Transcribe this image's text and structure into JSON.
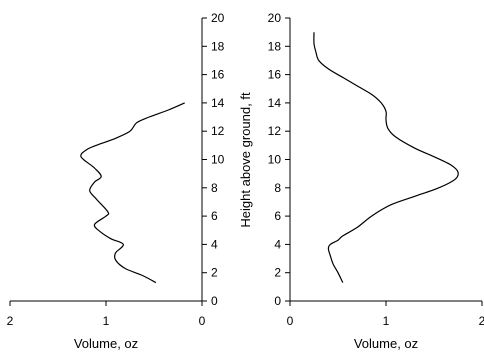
{
  "chart_data": [
    {
      "type": "line",
      "orientation": "horizontal-x-vertical-y",
      "xlabel": "Volume, oz",
      "ylabel": "",
      "xlim": [
        2,
        0
      ],
      "ylim": [
        0,
        20
      ],
      "x_reversed": true,
      "x_ticks": [
        2,
        1,
        0
      ],
      "y_ticks": [
        0,
        2,
        4,
        6,
        8,
        10,
        12,
        14,
        16,
        18,
        20
      ],
      "y_axis_side": "right",
      "grid": false,
      "series": [
        {
          "x": [
            0.48,
            0.62,
            0.8,
            0.9,
            0.9,
            0.82,
            0.95,
            1.06,
            1.12,
            1.0,
            0.98,
            1.1,
            1.17,
            1.12,
            1.05,
            1.12,
            1.26,
            1.2,
            1.1,
            0.9,
            0.75,
            0.68,
            0.55,
            0.35,
            0.18
          ],
          "y": [
            1.3,
            1.8,
            2.3,
            2.9,
            3.4,
            4.0,
            4.4,
            4.9,
            5.4,
            6.0,
            6.3,
            7.2,
            7.8,
            8.4,
            8.8,
            9.4,
            10.2,
            10.7,
            11.0,
            11.5,
            12.0,
            12.6,
            13.0,
            13.5,
            14.0
          ]
        }
      ]
    },
    {
      "type": "line",
      "orientation": "horizontal-x-vertical-y",
      "xlabel": "Volume, oz",
      "ylabel": "Height above ground, ft",
      "xlim": [
        0,
        2
      ],
      "ylim": [
        0,
        20
      ],
      "x_ticks": [
        0,
        1,
        2
      ],
      "y_ticks": [
        0,
        2,
        4,
        6,
        8,
        10,
        12,
        14,
        16,
        18,
        20
      ],
      "y_axis_side": "left",
      "grid": false,
      "series": [
        {
          "x": [
            0.55,
            0.5,
            0.45,
            0.42,
            0.4,
            0.42,
            0.5,
            0.55,
            0.7,
            0.85,
            1.05,
            1.3,
            1.55,
            1.72,
            1.75,
            1.68,
            1.5,
            1.3,
            1.1,
            1.02,
            1.0,
            1.0,
            0.95,
            0.85,
            0.7,
            0.55,
            0.4,
            0.3,
            0.27,
            0.25,
            0.25
          ],
          "y": [
            1.3,
            2.0,
            2.6,
            3.2,
            3.7,
            4.0,
            4.3,
            4.6,
            5.2,
            6.0,
            6.8,
            7.4,
            8.0,
            8.6,
            9.1,
            9.6,
            10.2,
            10.8,
            11.6,
            12.2,
            12.8,
            13.4,
            14.0,
            14.6,
            15.2,
            15.8,
            16.4,
            17.0,
            17.6,
            18.2,
            19.0
          ]
        }
      ]
    }
  ]
}
